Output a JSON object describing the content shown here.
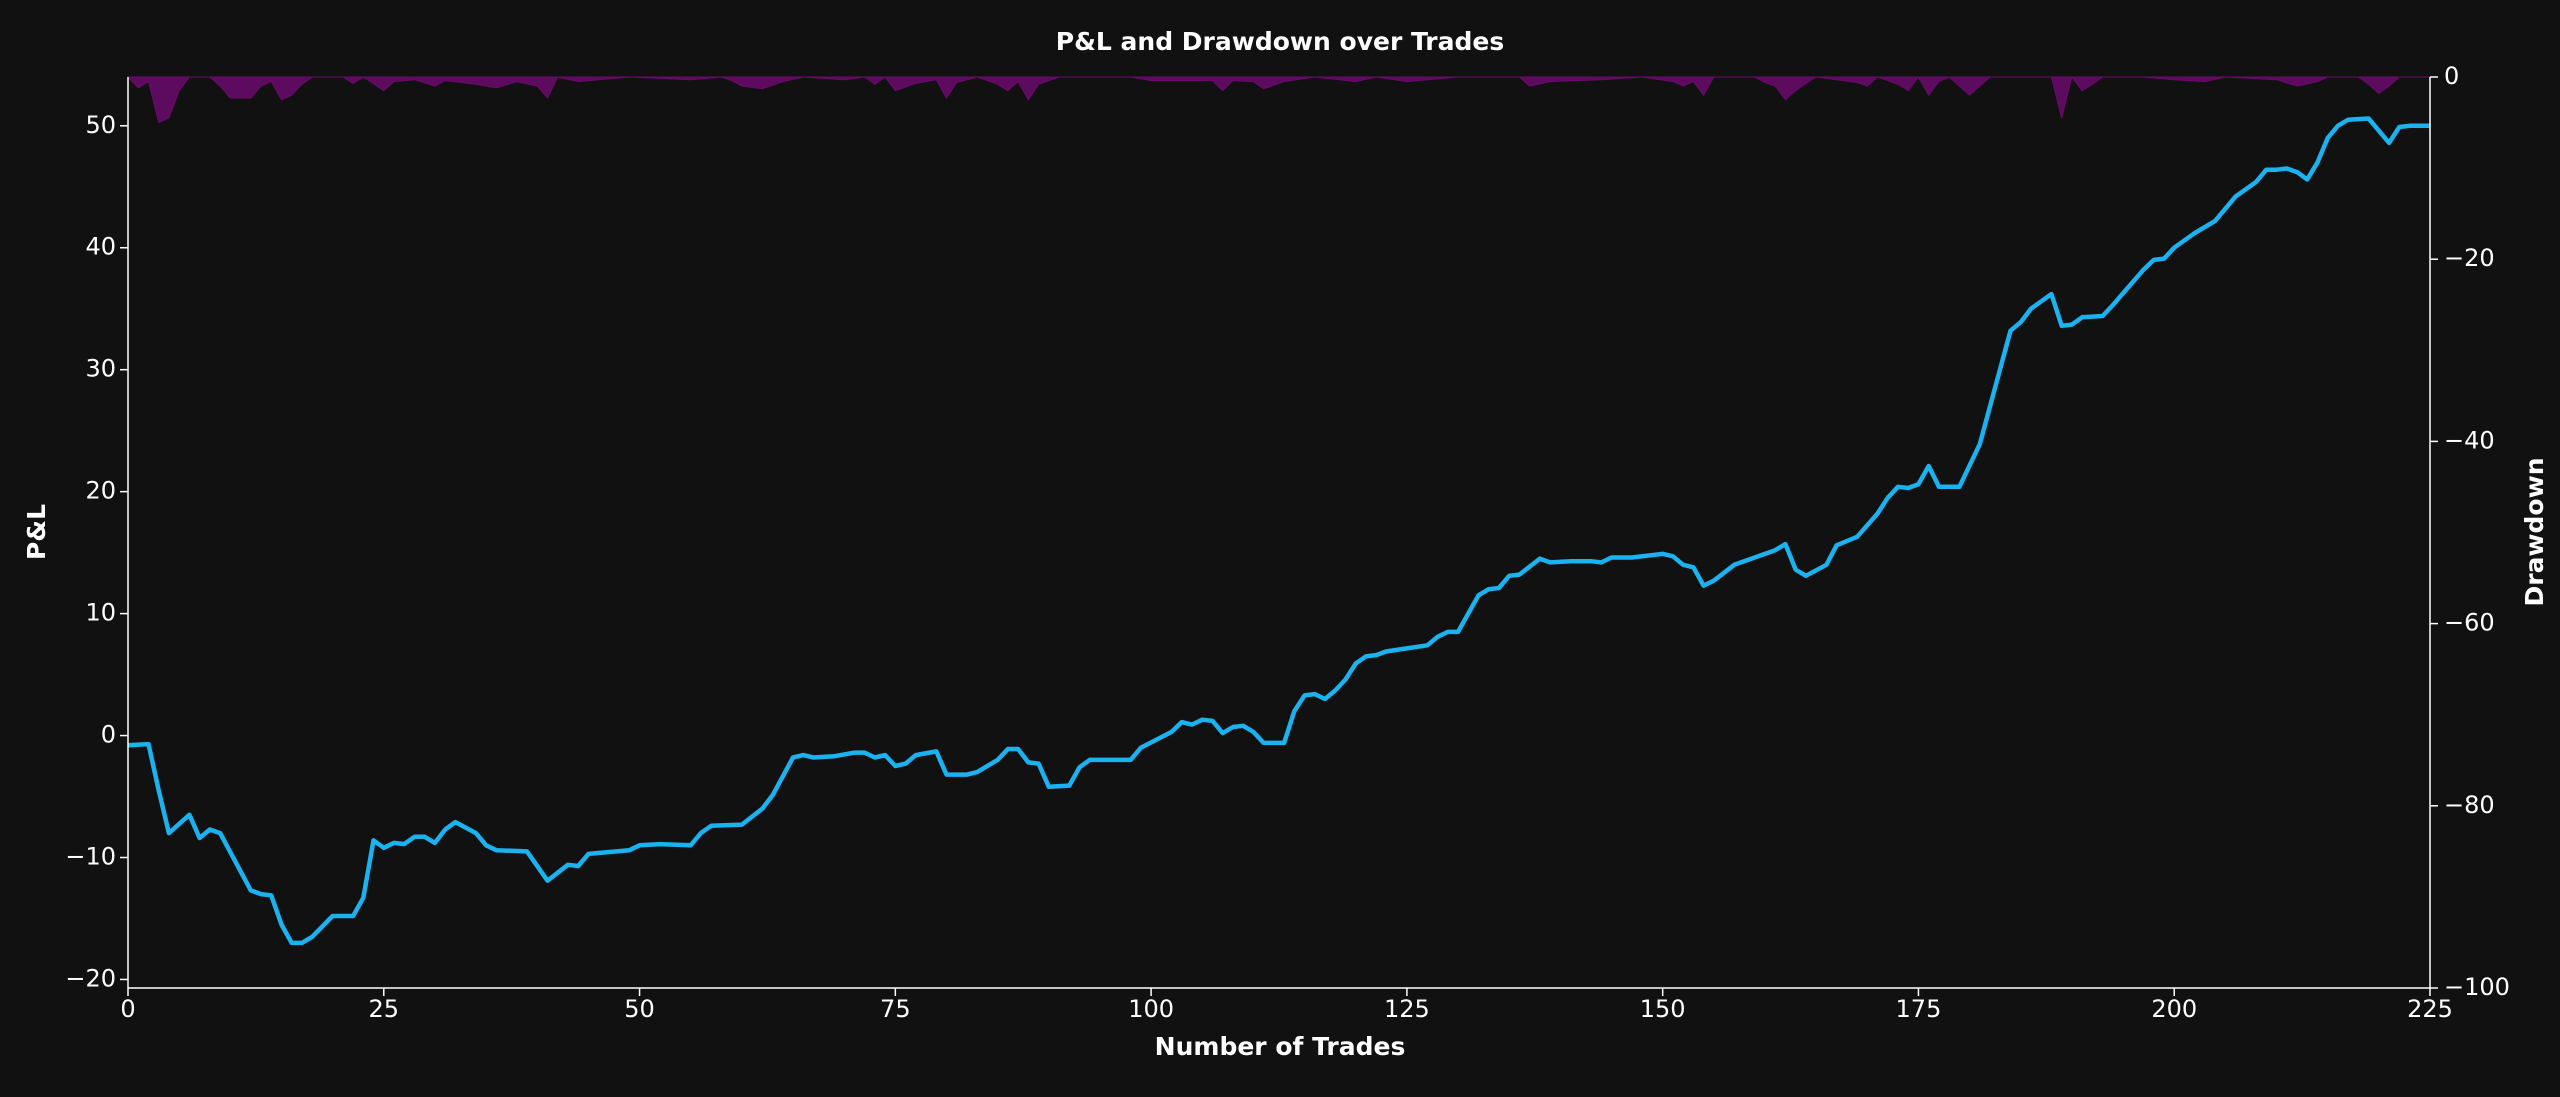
{
  "chart_data": {
    "type": "line",
    "title": "P&L and Drawdown over Trades",
    "xlabel": "Number of Trades",
    "ylabel": "P&L",
    "y2label": "Drawdown",
    "xlim": [
      0,
      225
    ],
    "xticks": [
      0,
      25,
      50,
      75,
      100,
      125,
      150,
      175,
      200,
      225
    ],
    "ylim": [
      -20.7,
      54
    ],
    "yticks": [
      {
        "value": -20,
        "label": "−20"
      },
      {
        "value": -10,
        "label": "−10"
      },
      0,
      10,
      20,
      30,
      40,
      50
    ],
    "y2lim": [
      -100,
      0
    ],
    "y2ticks": [
      {
        "value": -100,
        "label": "−100"
      },
      {
        "value": -80,
        "label": "−80"
      },
      {
        "value": -60,
        "label": "−60"
      },
      {
        "value": -40,
        "label": "−40"
      },
      {
        "value": -20,
        "label": "−20"
      },
      0
    ],
    "series": [
      {
        "color": "#1ab2ef",
        "x": [
          0,
          2,
          3,
          4,
          6,
          7,
          8,
          9,
          12,
          13,
          14,
          15,
          16,
          17,
          18,
          20,
          22,
          23,
          24,
          25,
          26,
          27,
          28,
          29,
          30,
          31,
          32,
          34,
          35,
          36,
          39,
          41,
          43,
          44,
          45,
          49,
          50,
          52,
          55,
          56,
          57,
          60,
          62,
          63,
          65,
          66,
          67,
          69,
          71,
          72,
          73,
          74,
          75,
          76,
          77,
          79,
          80,
          82,
          83,
          85,
          86,
          87,
          88,
          89,
          90,
          92,
          93,
          94,
          98,
          99,
          102,
          103,
          104,
          105,
          106,
          107,
          108,
          109,
          110,
          111,
          113,
          114,
          115,
          116,
          117,
          118,
          119,
          120,
          121,
          122,
          123,
          127,
          128,
          129,
          130,
          132,
          133,
          134,
          135,
          136,
          138,
          139,
          141,
          143,
          144,
          145,
          147,
          150,
          151,
          152,
          153,
          154,
          155,
          157,
          159,
          161,
          162,
          163,
          164,
          166,
          167,
          169,
          171,
          172,
          173,
          174,
          175,
          176,
          177,
          179,
          181,
          184,
          185,
          186,
          188,
          189,
          190,
          191,
          193,
          194,
          197,
          198,
          199,
          200,
          202,
          204,
          206,
          208,
          209,
          210,
          211,
          212,
          213,
          214,
          215,
          216,
          217,
          219,
          221,
          222,
          223,
          225
        ],
        "values": [
          -0.8,
          -0.7,
          -4.5,
          -8,
          -6.5,
          -8.4,
          -7.7,
          -8,
          -12.7,
          -13,
          -13.1,
          -15.5,
          -17,
          -17,
          -16.5,
          -14.8,
          -14.8,
          -13.3,
          -8.6,
          -9.2,
          -8.8,
          -8.9,
          -8.3,
          -8.3,
          -8.8,
          -7.7,
          -7.1,
          -8,
          -9,
          -9.4,
          -9.5,
          -11.9,
          -10.6,
          -10.7,
          -9.7,
          -9.4,
          -9,
          -8.9,
          -9,
          -8,
          -7.4,
          -7.3,
          -6,
          -4.9,
          -1.8,
          -1.6,
          -1.8,
          -1.7,
          -1.4,
          -1.4,
          -1.8,
          -1.6,
          -2.5,
          -2.3,
          -1.6,
          -1.3,
          -3.2,
          -3.2,
          -3,
          -2,
          -1.1,
          -1.1,
          -2.2,
          -2.3,
          -4.2,
          -4.1,
          -2.6,
          -2,
          -2,
          -1,
          0.3,
          1.1,
          0.9,
          1.3,
          1.2,
          0.2,
          0.7,
          0.8,
          0.3,
          -0.6,
          -0.6,
          2,
          3.3,
          3.4,
          3,
          3.7,
          4.6,
          5.9,
          6.5,
          6.6,
          6.9,
          7.4,
          8.1,
          8.5,
          8.5,
          11.5,
          12,
          12.1,
          13.1,
          13.2,
          14.5,
          14.2,
          14.3,
          14.3,
          14.2,
          14.6,
          14.6,
          14.9,
          14.7,
          14,
          13.8,
          12.3,
          12.7,
          14,
          14.6,
          15.2,
          15.7,
          13.6,
          13.1,
          14,
          15.6,
          16.3,
          18.2,
          19.5,
          20.4,
          20.3,
          20.6,
          22.1,
          20.4,
          20.4,
          23.9,
          33.2,
          33.9,
          35,
          36.2,
          33.6,
          33.7,
          34.3,
          34.4,
          35.3,
          38.2,
          39,
          39.1,
          40,
          41.2,
          42.2,
          44.2,
          45.4,
          46.4,
          46.4,
          46.5,
          46.2,
          45.6,
          47,
          49,
          50,
          50.5,
          50.6,
          48.6,
          49.9,
          50,
          50
        ]
      },
      {
        "color": "#6a0a6c",
        "axis": "y2",
        "x": [
          0,
          1,
          2,
          3,
          4,
          5,
          6,
          8,
          9,
          10,
          12,
          13,
          14,
          15,
          16,
          17,
          18,
          21,
          22,
          23,
          25,
          26,
          28,
          30,
          31,
          34,
          36,
          38,
          40,
          41,
          42,
          44,
          46,
          49,
          55,
          58,
          59,
          60,
          62,
          64,
          66,
          70,
          72,
          73,
          74,
          75,
          77,
          79,
          80,
          81,
          83,
          85,
          86,
          87,
          88,
          89,
          91,
          98,
          100,
          106,
          107,
          108,
          110,
          111,
          113,
          116,
          120,
          122,
          125,
          130,
          136,
          137,
          139,
          144,
          148,
          151,
          152,
          153,
          154,
          155,
          159,
          160,
          161,
          162,
          163,
          164,
          165,
          169,
          170,
          171,
          173,
          174,
          175,
          176,
          177,
          178,
          179,
          180,
          181,
          182,
          188,
          189,
          190,
          191,
          192,
          193,
          197,
          200,
          203,
          205,
          210,
          212,
          214,
          215,
          218,
          219,
          220,
          221,
          222,
          225
        ],
        "values": [
          0,
          -1.2,
          -0.5,
          -5,
          -4.5,
          -1.5,
          0,
          0,
          -1,
          -2.3,
          -2.3,
          -1,
          -0.5,
          -2.5,
          -2,
          -0.8,
          0,
          0,
          -0.7,
          0,
          -1.5,
          -0.5,
          -0.3,
          -1,
          -0.4,
          -0.8,
          -1.2,
          -0.5,
          -1,
          -2.3,
          0,
          -0.5,
          -0.3,
          0,
          -0.3,
          0,
          -0.4,
          -1,
          -1.3,
          -0.5,
          0,
          -0.3,
          0,
          -0.8,
          0,
          -1.5,
          -0.7,
          -0.3,
          -2.3,
          -0.6,
          0,
          -0.8,
          -1.5,
          -0.5,
          -2.5,
          -0.8,
          0,
          0,
          -0.4,
          -0.4,
          -1.5,
          -0.4,
          -0.5,
          -1.3,
          -0.5,
          0,
          -0.5,
          0,
          -0.5,
          0,
          0,
          -1,
          -0.5,
          -0.3,
          0,
          -0.5,
          -1,
          -0.5,
          -2,
          0,
          0,
          -0.6,
          -1,
          -2.5,
          -1.5,
          -0.7,
          0,
          -0.6,
          -1,
          0,
          -0.8,
          -1.5,
          0,
          -2,
          -0.5,
          0,
          -1,
          -2,
          -1,
          0,
          0,
          -4.5,
          0,
          -1.5,
          -0.8,
          0,
          0,
          -0.3,
          -0.5,
          0,
          -0.3,
          -1,
          -0.5,
          0,
          0,
          -0.8,
          -1.8,
          -1,
          0,
          0
        ]
      }
    ]
  }
}
